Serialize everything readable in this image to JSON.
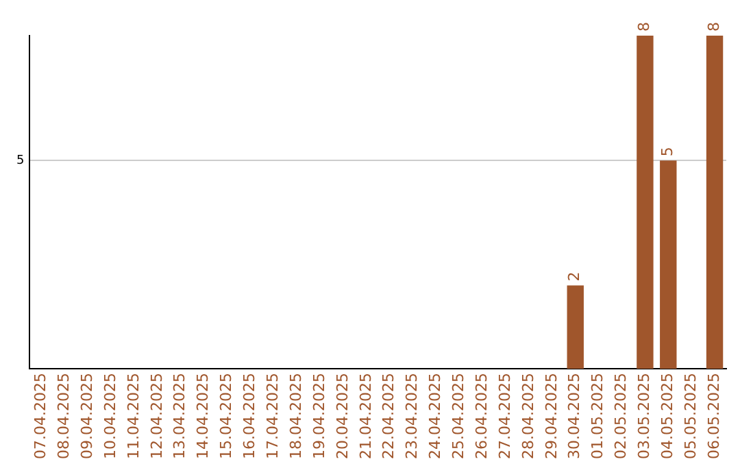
{
  "chart_data": {
    "type": "bar",
    "categories": [
      "07.04.2025",
      "08.04.2025",
      "09.04.2025",
      "10.04.2025",
      "11.04.2025",
      "12.04.2025",
      "13.04.2025",
      "14.04.2025",
      "15.04.2025",
      "16.04.2025",
      "17.04.2025",
      "18.04.2025",
      "19.04.2025",
      "20.04.2025",
      "21.04.2025",
      "22.04.2025",
      "23.04.2025",
      "24.04.2025",
      "25.04.2025",
      "26.04.2025",
      "27.04.2025",
      "28.04.2025",
      "29.04.2025",
      "30.04.2025",
      "01.05.2025",
      "02.05.2025",
      "03.05.2025",
      "04.05.2025",
      "05.05.2025",
      "06.05.2025"
    ],
    "values": [
      null,
      null,
      null,
      null,
      null,
      null,
      null,
      null,
      null,
      null,
      null,
      null,
      null,
      null,
      null,
      null,
      null,
      null,
      null,
      null,
      null,
      null,
      null,
      2,
      null,
      null,
      8,
      5,
      null,
      8
    ],
    "value_labels": [
      null,
      null,
      null,
      null,
      null,
      null,
      null,
      null,
      null,
      null,
      null,
      null,
      null,
      null,
      null,
      null,
      null,
      null,
      null,
      null,
      null,
      null,
      null,
      "2",
      null,
      null,
      "8",
      "5",
      null,
      "8"
    ],
    "color": "#a0562c",
    "ylim": [
      0,
      8
    ],
    "yticks": [
      5
    ],
    "grid": "y",
    "legend": false
  }
}
